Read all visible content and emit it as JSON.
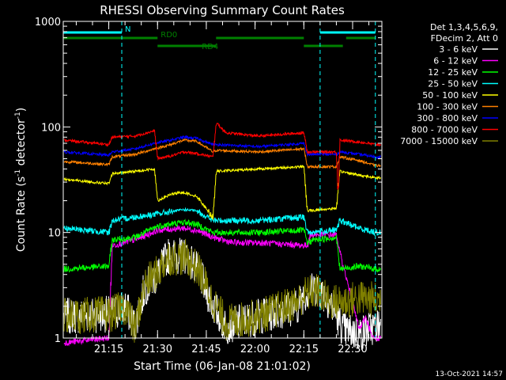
{
  "chart_data": {
    "type": "line",
    "title": "RHESSI Observing Summary Count Rates",
    "xlabel": "Start Time (06-Jan-08 21:01:02)",
    "ylabel_main": "Count Rate (s",
    "ylabel_sup1": "-1",
    "ylabel_mid": " detector",
    "ylabel_sup2": "-1",
    "ylabel_end": ")",
    "y_log": true,
    "ylim": [
      1,
      1000
    ],
    "xlim_min": [
      0,
      98
    ],
    "y_ticks": [
      {
        "v": 1,
        "label": "1"
      },
      {
        "v": 10,
        "label": "10"
      },
      {
        "v": 100,
        "label": "100"
      },
      {
        "v": 1000,
        "label": "1000"
      }
    ],
    "x_ticks": [
      {
        "t": 14,
        "label": "21:15"
      },
      {
        "t": 29,
        "label": "21:30"
      },
      {
        "t": 44,
        "label": "21:45"
      },
      {
        "t": 59,
        "label": "22:00"
      },
      {
        "t": 74,
        "label": "22:15"
      },
      {
        "t": 89,
        "label": "22:30"
      }
    ],
    "legend_header": [
      "Det 1,3,4,5,6,9,",
      "FDecim 2, Att 0"
    ],
    "legend_position": "right",
    "series": [
      {
        "name": "3 - 6 keV",
        "color": "#ffffff",
        "points": [
          [
            0,
            1.6
          ],
          [
            15,
            1.7
          ],
          [
            19,
            2
          ],
          [
            22,
            1.3
          ],
          [
            25,
            3
          ],
          [
            29,
            4
          ],
          [
            32,
            6
          ],
          [
            38,
            6
          ],
          [
            42,
            4
          ],
          [
            46,
            2
          ],
          [
            50,
            1.3
          ],
          [
            60,
            1.6
          ],
          [
            72,
            2
          ],
          [
            74,
            2.6
          ],
          [
            78,
            3
          ],
          [
            82,
            2.2
          ],
          [
            86,
            1.2
          ],
          [
            91,
            1.1
          ],
          [
            96,
            1.3
          ]
        ]
      },
      {
        "name": "6 - 12 keV",
        "color": "#ff00ff",
        "points": [
          [
            0,
            0.9
          ],
          [
            14,
            1
          ],
          [
            15,
            7.5
          ],
          [
            22,
            8.5
          ],
          [
            29,
            10.5
          ],
          [
            37,
            11
          ],
          [
            41,
            10.5
          ],
          [
            46,
            9
          ],
          [
            52,
            8
          ],
          [
            60,
            8
          ],
          [
            75,
            7.5
          ],
          [
            76,
            9.5
          ],
          [
            84,
            9.5
          ],
          [
            85,
            6.5
          ],
          [
            91,
            1.2
          ],
          [
            93,
            1.6
          ],
          [
            95,
            1
          ]
        ]
      },
      {
        "name": "12 - 25 keV",
        "color": "#00ff00",
        "points": [
          [
            0,
            4.5
          ],
          [
            14,
            4.8
          ],
          [
            15,
            8.5
          ],
          [
            22,
            9
          ],
          [
            29,
            11.5
          ],
          [
            37,
            12.5
          ],
          [
            41,
            12
          ],
          [
            46,
            10
          ],
          [
            60,
            10
          ],
          [
            74,
            10.5
          ],
          [
            75,
            8
          ],
          [
            77,
            8.5
          ],
          [
            84,
            9
          ],
          [
            85,
            4.5
          ],
          [
            91,
            4.8
          ],
          [
            96,
            4.5
          ]
        ]
      },
      {
        "name": "25 - 50 keV",
        "color": "#00ffff",
        "points": [
          [
            0,
            11
          ],
          [
            14,
            10
          ],
          [
            15,
            13
          ],
          [
            22,
            14
          ],
          [
            29,
            15
          ],
          [
            37,
            16.5
          ],
          [
            41,
            16
          ],
          [
            46,
            13
          ],
          [
            60,
            13
          ],
          [
            74,
            14
          ],
          [
            75,
            10
          ],
          [
            84,
            10.5
          ],
          [
            85,
            13
          ],
          [
            91,
            11
          ],
          [
            96,
            10
          ]
        ]
      },
      {
        "name": "50 - 100 keV",
        "color": "#ffff00",
        "points": [
          [
            0,
            32
          ],
          [
            14,
            29
          ],
          [
            15,
            36
          ],
          [
            22,
            38
          ],
          [
            28,
            40
          ],
          [
            29,
            20
          ],
          [
            33,
            23
          ],
          [
            37,
            24
          ],
          [
            41,
            22
          ],
          [
            46,
            14
          ],
          [
            47,
            38
          ],
          [
            60,
            40
          ],
          [
            74,
            42
          ],
          [
            75,
            16
          ],
          [
            84,
            17
          ],
          [
            85,
            38
          ],
          [
            91,
            35
          ],
          [
            96,
            33
          ]
        ]
      },
      {
        "name": "100 - 300 keV",
        "color": "#ff8000",
        "points": [
          [
            0,
            47
          ],
          [
            14,
            44
          ],
          [
            15,
            52
          ],
          [
            22,
            55
          ],
          [
            28,
            62
          ],
          [
            33,
            68
          ],
          [
            37,
            75
          ],
          [
            41,
            73
          ],
          [
            46,
            58
          ],
          [
            47,
            60
          ],
          [
            60,
            58
          ],
          [
            74,
            62
          ],
          [
            75,
            42
          ],
          [
            84,
            42
          ],
          [
            85,
            52
          ],
          [
            91,
            48
          ],
          [
            96,
            43
          ]
        ]
      },
      {
        "name": "300 - 800 keV",
        "color": "#0000ff",
        "points": [
          [
            0,
            58
          ],
          [
            14,
            54
          ],
          [
            15,
            58
          ],
          [
            22,
            62
          ],
          [
            28,
            70
          ],
          [
            33,
            75
          ],
          [
            37,
            80
          ],
          [
            41,
            78
          ],
          [
            46,
            68
          ],
          [
            47,
            68
          ],
          [
            60,
            65
          ],
          [
            74,
            70
          ],
          [
            75,
            55
          ],
          [
            84,
            55
          ],
          [
            85,
            58
          ],
          [
            91,
            55
          ],
          [
            96,
            52
          ]
        ]
      },
      {
        "name": "800 - 7000 keV",
        "color": "#ff0000",
        "points": [
          [
            0,
            75
          ],
          [
            14,
            68
          ],
          [
            15,
            80
          ],
          [
            22,
            82
          ],
          [
            28,
            92
          ],
          [
            29,
            50
          ],
          [
            33,
            53
          ],
          [
            37,
            58
          ],
          [
            41,
            56
          ],
          [
            46,
            52
          ],
          [
            47,
            110
          ],
          [
            50,
            88
          ],
          [
            60,
            82
          ],
          [
            74,
            88
          ],
          [
            75,
            58
          ],
          [
            84,
            58
          ],
          [
            84.5,
            20
          ],
          [
            85,
            75
          ],
          [
            91,
            72
          ],
          [
            96,
            68
          ]
        ]
      },
      {
        "name": "7000 - 15000 keV",
        "color": "#808000",
        "points": [
          [
            0,
            1.6
          ],
          [
            15,
            1.7
          ],
          [
            19,
            2
          ],
          [
            22,
            1.2
          ],
          [
            25,
            3.2
          ],
          [
            29,
            4.2
          ],
          [
            32,
            5.8
          ],
          [
            38,
            5.8
          ],
          [
            42,
            4.2
          ],
          [
            46,
            2.2
          ],
          [
            50,
            1.4
          ],
          [
            60,
            1.6
          ],
          [
            72,
            2.2
          ],
          [
            74,
            2.6
          ],
          [
            78,
            2.8
          ],
          [
            82,
            2.2
          ],
          [
            86,
            2.2
          ],
          [
            91,
            2.4
          ],
          [
            96,
            2.3
          ]
        ]
      }
    ],
    "state_bars": [
      {
        "label": "N",
        "color": "#00ffff",
        "row": "top",
        "segments": [
          [
            0,
            18
          ],
          [
            79,
            96
          ]
        ]
      },
      {
        "label": "RD0",
        "color": "#008000",
        "row": "mid",
        "segments": [
          [
            0,
            29
          ],
          [
            47,
            74
          ],
          [
            87,
            96
          ]
        ]
      },
      {
        "label": "RD4",
        "color": "#008000",
        "row": "low",
        "segments": [
          [
            29,
            47
          ],
          [
            74,
            86
          ]
        ]
      }
    ],
    "vertical_lines": [
      0,
      18,
      79,
      96
    ],
    "footer_timestamp": "13-Oct-2021 14:57"
  }
}
